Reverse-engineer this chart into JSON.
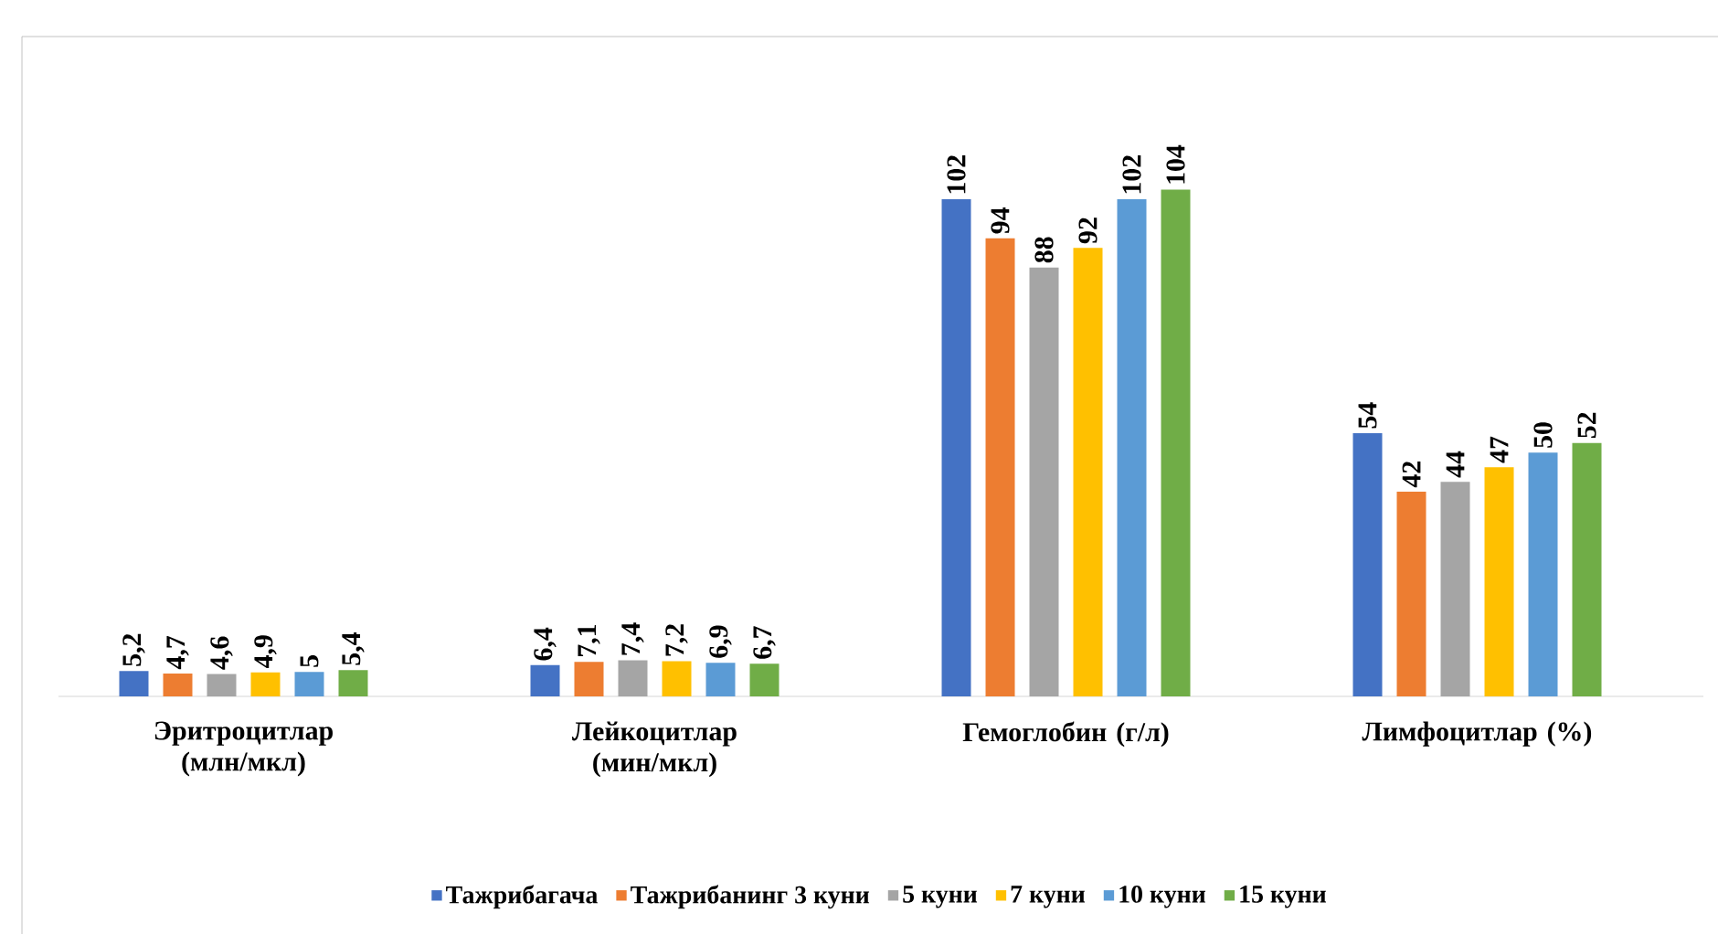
{
  "chart_data": {
    "type": "bar",
    "categories": [
      "Эритроцитлар (млн/мкл)",
      "Лейкоцитлар (мин/мкл)",
      "Гемоглобин (г/л)",
      "Лимфоцитлар (%)"
    ],
    "legend": "bottom",
    "series": [
      {
        "name": "Тажрибагача",
        "color": "#4472c4",
        "values": [
          5.2,
          6.4,
          102,
          54
        ],
        "value_labels": [
          "5,2",
          "6,4",
          "102",
          "54"
        ]
      },
      {
        "name": "Тажрибанинг 3 куни",
        "color": "#ed7d31",
        "values": [
          4.7,
          7.1,
          94,
          42
        ],
        "value_labels": [
          "4,7",
          "7,1",
          "94",
          "42"
        ]
      },
      {
        "name": "5 куни",
        "color": "#a5a5a5",
        "values": [
          4.6,
          7.4,
          88,
          44
        ],
        "value_labels": [
          "4,6",
          "7,4",
          "88",
          "44"
        ]
      },
      {
        "name": "7 куни",
        "color": "#ffc000",
        "values": [
          4.9,
          7.2,
          92,
          47
        ],
        "value_labels": [
          "4,9",
          "7,2",
          "92",
          "47"
        ]
      },
      {
        "name": "10 куни",
        "color": "#5b9bd5",
        "values": [
          5,
          6.9,
          102,
          50
        ],
        "value_labels": [
          "5",
          "6,9",
          "102",
          "50"
        ]
      },
      {
        "name": "15 куни",
        "color": "#70ad47",
        "values": [
          5.4,
          6.7,
          104,
          52
        ],
        "value_labels": [
          "5,4",
          "6,7",
          "104",
          "52"
        ]
      }
    ]
  }
}
